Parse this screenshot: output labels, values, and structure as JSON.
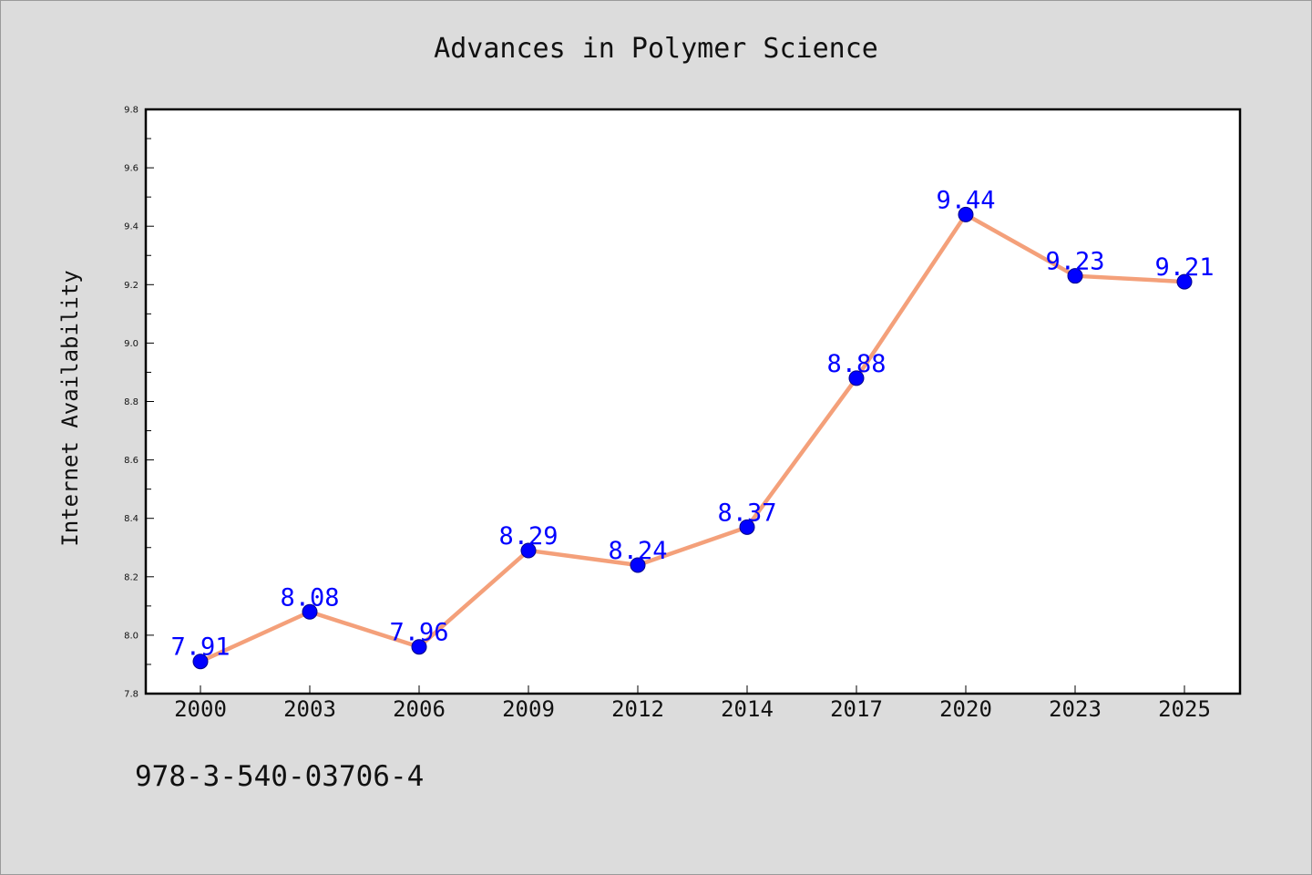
{
  "chart_data": {
    "type": "line",
    "title": "Advances in Polymer Science",
    "xlabel": "",
    "ylabel": "Internet Availability",
    "categories": [
      "2000",
      "2003",
      "2006",
      "2009",
      "2012",
      "2014",
      "2017",
      "2020",
      "2023",
      "2025"
    ],
    "series": [
      {
        "values": [
          7.91,
          8.08,
          7.96,
          8.29,
          8.24,
          8.37,
          8.88,
          9.44,
          9.23,
          9.21
        ],
        "data_labels": [
          "7.91",
          "8.08",
          "7.96",
          "8.29",
          "8.24",
          "8.37",
          "8.88",
          "9.44",
          "9.23",
          "9.21"
        ]
      }
    ],
    "ylim": [
      7.8,
      9.8
    ],
    "yticks": [
      "7.8",
      "8.0",
      "8.2",
      "8.4",
      "8.6",
      "8.8",
      "9.0",
      "9.2",
      "9.4",
      "9.6",
      "9.8"
    ],
    "grid": false,
    "line_color": "#f4a07a",
    "marker_color": "#0000ff",
    "label_color": "#0000ff"
  },
  "footer": {
    "isbn": "978-3-540-03706-4"
  }
}
